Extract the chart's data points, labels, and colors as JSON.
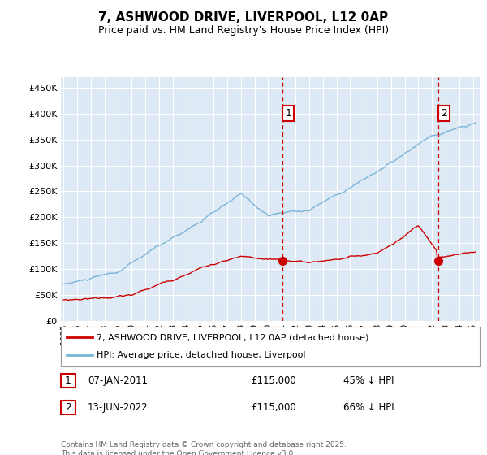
{
  "title": "7, ASHWOOD DRIVE, LIVERPOOL, L12 0AP",
  "subtitle": "Price paid vs. HM Land Registry's House Price Index (HPI)",
  "ytick_values": [
    0,
    50000,
    100000,
    150000,
    200000,
    250000,
    300000,
    350000,
    400000,
    450000
  ],
  "ylim": [
    0,
    470000
  ],
  "hpi_color": "#7ab4d8",
  "price_color": "#cc0000",
  "vline_color": "#cc0000",
  "bg_color": "#ddeaf5",
  "grid_color": "#c8d8e8",
  "transaction1": {
    "date": "07-JAN-2011",
    "price": 115000,
    "label": "1",
    "pct": "45% ↓ HPI",
    "year": 2011.04
  },
  "transaction2": {
    "date": "13-JUN-2022",
    "price": 115000,
    "label": "2",
    "pct": "66% ↓ HPI",
    "year": 2022.45
  },
  "legend_property": "7, ASHWOOD DRIVE, LIVERPOOL, L12 0AP (detached house)",
  "legend_hpi": "HPI: Average price, detached house, Liverpool",
  "footer": "Contains HM Land Registry data © Crown copyright and database right 2025.\nThis data is licensed under the Open Government Licence v3.0."
}
